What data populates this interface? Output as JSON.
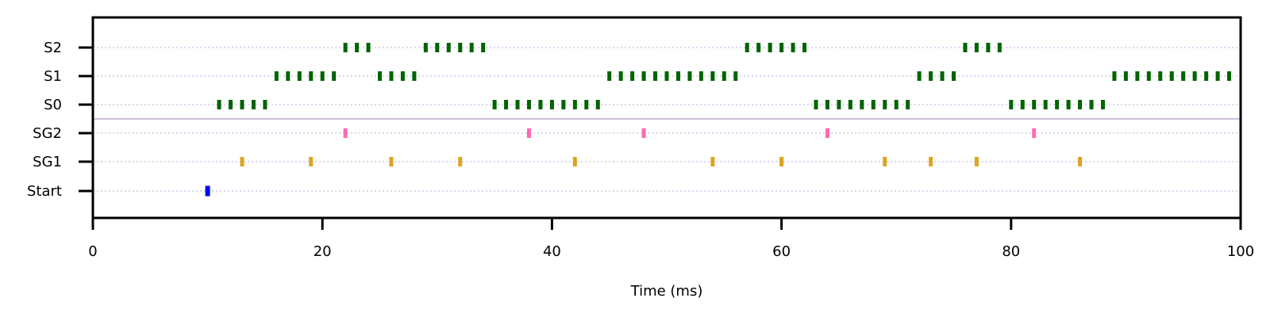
{
  "chart_data": {
    "type": "raster",
    "title": "",
    "xlabel": "Time (ms)",
    "ylabel": "",
    "xlim": [
      0,
      100
    ],
    "x_ticks": [
      0,
      20,
      40,
      60,
      80,
      100
    ],
    "x_tick_labels": [
      "0",
      "20",
      "40",
      "60",
      "80",
      "100"
    ],
    "categories": [
      "Start",
      "SG1",
      "SG2",
      "S0",
      "S1",
      "S2"
    ],
    "grid": "horizontal dotted",
    "separator_between": [
      "SG2",
      "S0"
    ],
    "series": [
      {
        "category": "Start",
        "color": "#0000ff",
        "x": [
          10
        ]
      },
      {
        "category": "SG1",
        "color": "#daa520",
        "x": [
          13,
          19,
          26,
          32,
          42,
          54,
          60,
          69,
          73,
          77,
          86
        ]
      },
      {
        "category": "SG2",
        "color": "#ff69b4",
        "x": [
          22,
          38,
          48,
          64,
          82
        ]
      },
      {
        "category": "S0",
        "color": "#006400",
        "x": [
          11,
          12,
          13,
          14,
          15,
          35,
          36,
          37,
          38,
          39,
          40,
          41,
          42,
          43,
          44,
          63,
          64,
          65,
          66,
          67,
          68,
          69,
          70,
          71,
          80,
          81,
          82,
          83,
          84,
          85,
          86,
          87,
          88
        ]
      },
      {
        "category": "S1",
        "color": "#006400",
        "x": [
          16,
          17,
          18,
          19,
          20,
          21,
          25,
          26,
          27,
          28,
          45,
          46,
          47,
          48,
          49,
          50,
          51,
          52,
          53,
          54,
          55,
          56,
          72,
          73,
          74,
          75,
          89,
          90,
          91,
          92,
          93,
          94,
          95,
          96,
          97,
          98,
          99
        ]
      },
      {
        "category": "S2",
        "color": "#006400",
        "x": [
          22,
          23,
          24,
          29,
          30,
          31,
          32,
          33,
          34,
          57,
          58,
          59,
          60,
          61,
          62,
          76,
          77,
          78,
          79
        ]
      }
    ]
  }
}
